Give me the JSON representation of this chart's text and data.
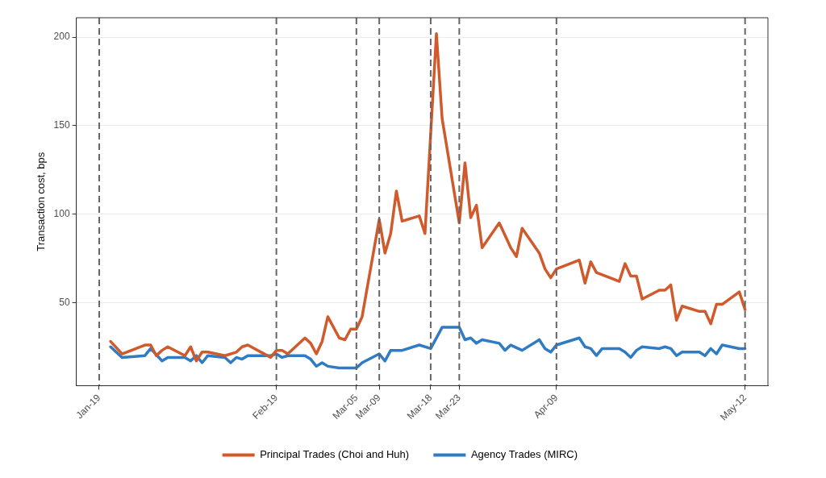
{
  "chart_data": {
    "type": "line",
    "ylabel": "Transaction cost, bps",
    "legend": "bottom",
    "grid": true,
    "line_style": "solid",
    "marker": "none",
    "xlim": [
      "--01-15",
      "--05-16"
    ],
    "ylim": [
      3,
      211
    ],
    "yticks": [
      50,
      100,
      150,
      200
    ],
    "xticks": [
      {
        "value": "--01-19",
        "label": "Jan-19"
      },
      {
        "value": "--02-19",
        "label": "Feb-19"
      },
      {
        "value": "--03-05",
        "label": "Mar-05"
      },
      {
        "value": "--03-09",
        "label": "Mar-09"
      },
      {
        "value": "--03-18",
        "label": "Mar-18"
      },
      {
        "value": "--03-23",
        "label": "Mar-23"
      },
      {
        "value": "--04-09",
        "label": "Apr-09"
      },
      {
        "value": "--05-12",
        "label": "May-12"
      }
    ],
    "ref_lines": [
      {
        "axis": "x",
        "value": "--01-19",
        "color": "#666666",
        "line_style": "dashed"
      },
      {
        "axis": "x",
        "value": "--02-19",
        "color": "#666666",
        "line_style": "dashed"
      },
      {
        "axis": "x",
        "value": "--03-05",
        "color": "#666666",
        "line_style": "dashed"
      },
      {
        "axis": "x",
        "value": "--03-09",
        "color": "#666666",
        "line_style": "dashed"
      },
      {
        "axis": "x",
        "value": "--03-18",
        "color": "#666666",
        "line_style": "dashed"
      },
      {
        "axis": "x",
        "value": "--03-23",
        "color": "#666666",
        "line_style": "dashed"
      },
      {
        "axis": "x",
        "value": "--04-09",
        "color": "#666666",
        "line_style": "dashed"
      },
      {
        "axis": "x",
        "value": "--05-12",
        "color": "#666666",
        "line_style": "dashed"
      }
    ],
    "series": [
      {
        "name": "Principal Trades (Choi and Huh)",
        "color": "#d05a2c",
        "x": [
          "--01-21",
          "--01-23",
          "--01-27",
          "--01-28",
          "--01-29",
          "--01-30",
          "--01-31",
          "--02-03",
          "--02-04",
          "--02-05",
          "--02-06",
          "--02-07",
          "--02-10",
          "--02-12",
          "--02-13",
          "--02-14",
          "--02-18",
          "--02-19",
          "--02-20",
          "--02-21",
          "--02-24",
          "--02-25",
          "--02-26",
          "--02-27",
          "--02-28",
          "--03-02",
          "--03-03",
          "--03-04",
          "--03-05",
          "--03-06",
          "--03-09",
          "--03-10",
          "--03-11",
          "--03-12",
          "--03-13",
          "--03-16",
          "--03-17",
          "--03-19",
          "--03-20",
          "--03-23",
          "--03-24",
          "--03-25",
          "--03-26",
          "--03-27",
          "--03-30",
          "--04-01",
          "--04-02",
          "--04-03",
          "--04-06",
          "--04-07",
          "--04-08",
          "--04-09",
          "--04-13",
          "--04-14",
          "--04-15",
          "--04-16",
          "--04-20",
          "--04-21",
          "--04-22",
          "--04-23",
          "--04-24",
          "--04-27",
          "--04-28",
          "--04-29",
          "--04-30",
          "--05-01",
          "--05-04",
          "--05-05",
          "--05-06",
          "--05-07",
          "--05-08",
          "--05-11",
          "--05-12"
        ],
        "values": [
          28,
          21,
          26,
          26,
          20,
          23,
          25,
          20,
          25,
          17,
          22,
          22,
          20,
          22,
          25,
          26,
          19,
          23,
          23,
          21,
          30,
          27,
          21,
          28,
          42,
          30,
          29,
          35,
          35,
          42,
          97,
          78,
          89,
          113,
          96,
          99,
          89,
          202,
          154,
          95,
          129,
          98,
          105,
          81,
          95,
          81,
          76,
          92,
          78,
          69,
          64,
          69,
          74,
          61,
          73,
          67,
          62,
          72,
          65,
          65,
          52,
          57,
          57,
          60,
          40,
          48,
          45,
          45,
          38,
          49,
          49,
          56,
          46
        ]
      },
      {
        "name": "Agency Trades (MIRC)",
        "color": "#2f7bc4",
        "x": [
          "--01-21",
          "--01-23",
          "--01-27",
          "--01-28",
          "--01-30",
          "--01-31",
          "--02-03",
          "--02-04",
          "--02-05",
          "--02-06",
          "--02-07",
          "--02-10",
          "--02-11",
          "--02-12",
          "--02-13",
          "--02-14",
          "--02-18",
          "--02-19",
          "--02-20",
          "--02-21",
          "--02-24",
          "--02-25",
          "--02-26",
          "--02-27",
          "--02-28",
          "--03-02",
          "--03-03",
          "--03-04",
          "--03-05",
          "--03-06",
          "--03-09",
          "--03-10",
          "--03-11",
          "--03-13",
          "--03-16",
          "--03-18",
          "--03-20",
          "--03-23",
          "--03-24",
          "--03-25",
          "--03-26",
          "--03-27",
          "--03-30",
          "--03-31",
          "--04-01",
          "--04-03",
          "--04-06",
          "--04-07",
          "--04-08",
          "--04-09",
          "--04-13",
          "--04-14",
          "--04-15",
          "--04-16",
          "--04-17",
          "--04-20",
          "--04-21",
          "--04-22",
          "--04-23",
          "--04-24",
          "--04-27",
          "--04-28",
          "--04-29",
          "--04-30",
          "--05-01",
          "--05-04",
          "--05-05",
          "--05-06",
          "--05-07",
          "--05-08",
          "--05-11",
          "--05-12"
        ],
        "values": [
          25,
          19,
          20,
          24,
          17,
          19,
          19,
          17,
          20,
          16,
          20,
          19,
          16,
          19,
          18,
          20,
          20,
          21,
          19,
          20,
          20,
          18,
          14,
          16,
          14,
          13,
          13,
          13,
          13,
          16,
          21,
          17,
          23,
          23,
          26,
          24,
          36,
          36,
          29,
          30,
          27,
          29,
          27,
          23,
          26,
          23,
          29,
          24,
          22,
          26,
          30,
          25,
          24,
          20,
          24,
          24,
          22,
          19,
          23,
          25,
          24,
          25,
          24,
          20,
          22,
          22,
          20,
          24,
          21,
          26,
          24,
          24
        ]
      }
    ]
  }
}
